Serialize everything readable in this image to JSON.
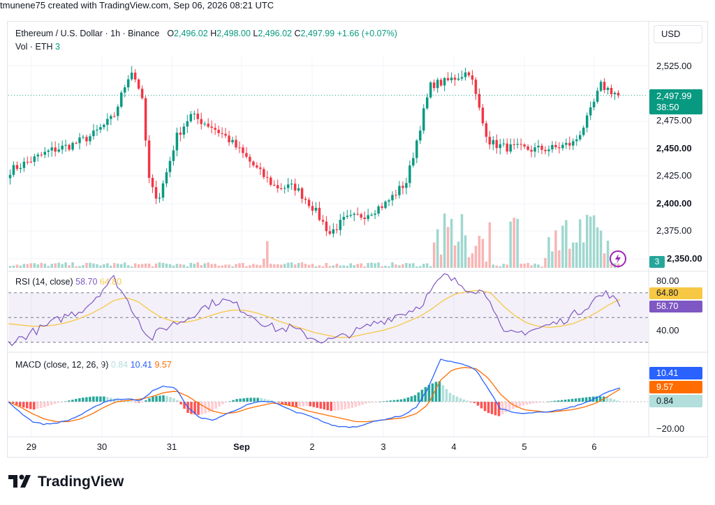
{
  "header": {
    "credit": "tmunene75 created with TradingView.com, Sep 06, 2026 08:21 UTC"
  },
  "currency_button": "USD",
  "main_legend": {
    "title": "Ethereum / U.S. Dollar · 1h · Binance",
    "o_label": "O",
    "o_value": "2,496.02",
    "h_label": "H",
    "h_value": "2,498.00",
    "l_label": "L",
    "l_value": "2,496.02",
    "c_label": "C",
    "c_value": "2,497.99",
    "change": "+1.66 (+0.07%)",
    "vol_label": "Vol · ETH",
    "vol_value": "3"
  },
  "price_pill": {
    "value": "2,497.99",
    "countdown": "38:50"
  },
  "volume_pill": "3",
  "rsi_legend": {
    "label": "RSI (14, close)",
    "rsi": "58.70",
    "ma": "64.80"
  },
  "rsi_pills": {
    "ma": "64.80",
    "rsi": "58.70"
  },
  "macd_legend": {
    "label": "MACD (close, 12, 26, 9)",
    "hist": "0.84",
    "macd": "10.41",
    "signal": "9.57"
  },
  "macd_pills": {
    "macd": "10.41",
    "signal": "9.57",
    "hist": "0.84"
  },
  "price_ticks": [
    "2,525.00",
    "2,475.00",
    "2,450.00",
    "2,425.00",
    "2,400.00",
    "2,375.00",
    "2,350.00"
  ],
  "rsi_ticks": [
    "80.00",
    "40.00"
  ],
  "macd_ticks": [
    "−20.00"
  ],
  "x_ticks": [
    "29",
    "30",
    "31",
    "Sep",
    "2",
    "3",
    "4",
    "5",
    "6"
  ],
  "logo_text": "TradingView",
  "colors": {
    "up": "#089981",
    "down": "#f23645",
    "rsi": "#7e57c2",
    "rsi_ma": "#f7c844",
    "macd": "#2962ff",
    "signal": "#ff6d00",
    "text": "#131722"
  },
  "chart_data": [
    {
      "type": "candlestick",
      "title": "Ethereum / U.S. Dollar · 1h · Binance",
      "x_ticks": [
        "29",
        "30",
        "31",
        "Sep",
        "2",
        "3",
        "4",
        "5",
        "6"
      ],
      "ylim": [
        2350,
        2540
      ],
      "key_points": [
        {
          "x": "29",
          "y": 2430
        },
        {
          "x": "29",
          "y": 2437
        },
        {
          "x": "30",
          "y": 2448
        },
        {
          "x": "30",
          "y": 2453
        },
        {
          "x": "30",
          "y": 2462
        },
        {
          "x": "30",
          "y": 2478
        },
        {
          "x": "30",
          "y": 2522
        },
        {
          "x": "31",
          "y": 2500
        },
        {
          "x": "31",
          "y": 2415
        },
        {
          "x": "31",
          "y": 2405
        },
        {
          "x": "31",
          "y": 2437
        },
        {
          "x": "31",
          "y": 2460
        },
        {
          "x": "Sep",
          "y": 2480
        },
        {
          "x": "Sep",
          "y": 2470
        },
        {
          "x": "Sep",
          "y": 2460
        },
        {
          "x": "Sep",
          "y": 2445
        },
        {
          "x": "Sep",
          "y": 2428
        },
        {
          "x": "2",
          "y": 2415
        },
        {
          "x": "2",
          "y": 2415
        },
        {
          "x": "2",
          "y": 2397
        },
        {
          "x": "2",
          "y": 2373
        },
        {
          "x": "3",
          "y": 2385
        },
        {
          "x": "3",
          "y": 2390
        },
        {
          "x": "3",
          "y": 2400
        },
        {
          "x": "3",
          "y": 2420
        },
        {
          "x": "3",
          "y": 2490
        },
        {
          "x": "4",
          "y": 2508
        },
        {
          "x": "4",
          "y": 2510
        },
        {
          "x": "4",
          "y": 2520
        },
        {
          "x": "4",
          "y": 2470
        },
        {
          "x": "4",
          "y": 2455
        },
        {
          "x": "5",
          "y": 2451
        },
        {
          "x": "5",
          "y": 2449
        },
        {
          "x": "5",
          "y": 2450
        },
        {
          "x": "5",
          "y": 2455
        },
        {
          "x": "6",
          "y": 2478
        },
        {
          "x": "6",
          "y": 2507
        },
        {
          "x": "6",
          "y": 2498
        }
      ],
      "last": {
        "open": 2496.02,
        "high": 2498.0,
        "low": 2496.02,
        "close": 2497.99,
        "change": "+1.66 (+0.07%)"
      }
    },
    {
      "type": "line",
      "title": "RSI (14, close)",
      "ylim": [
        20,
        90
      ],
      "series": [
        {
          "name": "RSI",
          "values": [
            30,
            33,
            38,
            42,
            47,
            52,
            55,
            62,
            73,
            82,
            65,
            50,
            32,
            40,
            45,
            48,
            55,
            60,
            64,
            62,
            56,
            50,
            44,
            40,
            42,
            37,
            33,
            31,
            33,
            37,
            40,
            45,
            48,
            52,
            55,
            60,
            72,
            84,
            79,
            74,
            72,
            66,
            36,
            37,
            39,
            41,
            44,
            47,
            52,
            58,
            66,
            70,
            58.7
          ]
        },
        {
          "name": "MA",
          "values": [
            45,
            44,
            43,
            43,
            44,
            46,
            49,
            53,
            58,
            64,
            66,
            63,
            56,
            50,
            47,
            46,
            48,
            51,
            54,
            56,
            56,
            54,
            51,
            47,
            44,
            41,
            38,
            36,
            34,
            34,
            36,
            38,
            40,
            43,
            47,
            51,
            57,
            64,
            69,
            71,
            72,
            70,
            60,
            52,
            46,
            43,
            42,
            43,
            45,
            49,
            54,
            60,
            64.8
          ]
        }
      ],
      "levels": [
        70,
        30
      ]
    },
    {
      "type": "line",
      "title": "MACD (close, 12, 26, 9)",
      "ylim": [
        -35,
        40
      ],
      "series": [
        {
          "name": "MACD",
          "values": [
            0,
            -8,
            -15,
            -17,
            -16,
            -14,
            -10,
            -5,
            0,
            2,
            2,
            1,
            8,
            12,
            10,
            -5,
            -12,
            -14,
            -10,
            -6,
            -2,
            0,
            0,
            -4,
            -8,
            -10,
            -14,
            -18,
            -19,
            -19,
            -16,
            -14,
            -12,
            -10,
            -4,
            10,
            32,
            30,
            28,
            24,
            10,
            -5,
            -8,
            -9,
            -8,
            -8,
            -6,
            -4,
            -1,
            3,
            8,
            10.41
          ]
        },
        {
          "name": "Signal",
          "values": [
            0,
            -4,
            -9,
            -13,
            -15,
            -15,
            -13,
            -9,
            -4,
            0,
            1,
            2,
            4,
            7,
            8,
            4,
            -2,
            -7,
            -9,
            -8,
            -5,
            -3,
            -1,
            -2,
            -4,
            -7,
            -9,
            -11,
            -13,
            -15,
            -15,
            -14,
            -13,
            -12,
            -9,
            -2,
            16,
            24,
            26,
            25,
            18,
            6,
            -2,
            -6,
            -7,
            -8,
            -7,
            -6,
            -4,
            -1,
            4,
            9.57
          ]
        }
      ],
      "histogram_last": 0.84
    }
  ]
}
